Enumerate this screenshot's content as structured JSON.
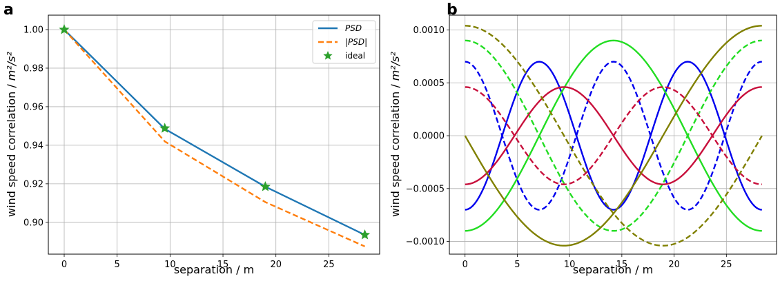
{
  "chart_data": [
    {
      "type": "line",
      "panel_label": "a",
      "xlabel": "separation / m",
      "ylabel_prefix": "wind speed correlation / ",
      "ylabel_unit": "m²/s²",
      "xlim": [
        -1.5,
        29.8
      ],
      "ylim": [
        0.8835,
        1.0075
      ],
      "xticks": [
        0,
        5,
        10,
        15,
        20,
        25
      ],
      "yticks": [
        0.9,
        0.92,
        0.94,
        0.96,
        0.98,
        1.0
      ],
      "ytick_labels": [
        "0.90",
        "0.92",
        "0.94",
        "0.96",
        "0.98",
        "1.00"
      ],
      "grid": true,
      "legend_position": "top-right",
      "series": [
        {
          "name": "PSD",
          "color": "#1f77b4",
          "style": "solid",
          "x": [
            0,
            9.5,
            19.0,
            28.4
          ],
          "y": [
            1.0,
            0.9485,
            0.9185,
            0.8935
          ]
        },
        {
          "name": "|PSD|",
          "color": "#ff7f0e",
          "style": "dashed",
          "x": [
            0,
            9.5,
            19.0,
            28.4
          ],
          "y": [
            1.0,
            0.942,
            0.9105,
            0.8875
          ]
        },
        {
          "name": "ideal",
          "color": "#2ca02c",
          "style": "marker-star",
          "x": [
            0,
            9.5,
            19.0,
            28.4
          ],
          "y": [
            1.0,
            0.9488,
            0.9185,
            0.8935
          ]
        }
      ]
    },
    {
      "type": "line",
      "panel_label": "b",
      "xlabel": "separation / m",
      "ylabel_prefix": "wind speed correlation / ",
      "ylabel_unit": "m²/s²",
      "xlim": [
        -1.5,
        29.8
      ],
      "ylim": [
        -0.00112,
        0.00114
      ],
      "xticks": [
        0,
        5,
        10,
        15,
        20,
        25
      ],
      "yticks": [
        -0.001,
        -0.0005,
        0,
        0.0005,
        0.001
      ],
      "ytick_labels": [
        "−0.0010",
        "−0.0005",
        "0.0000",
        "0.0005",
        "0.0010"
      ],
      "grid": true,
      "x_max": 28.4,
      "series": [
        {
          "color": "#0000ee",
          "style": "solid",
          "kind": "cos",
          "amplitude": -0.0007,
          "period": 14.2
        },
        {
          "color": "#0000ee",
          "style": "dashed",
          "kind": "cos",
          "amplitude": 0.0007,
          "period": 14.2
        },
        {
          "color": "#22dd22",
          "style": "solid",
          "kind": "cos",
          "amplitude": -0.0009,
          "period": 28.4
        },
        {
          "color": "#22dd22",
          "style": "dashed",
          "kind": "cos",
          "amplitude": 0.0009,
          "period": 28.4
        },
        {
          "color": "#c8103c",
          "style": "solid",
          "kind": "cos",
          "amplitude": -0.00046,
          "period": 18.93
        },
        {
          "color": "#c8103c",
          "style": "dashed",
          "kind": "cos",
          "amplitude": 0.00046,
          "period": 18.93
        },
        {
          "color": "#808000",
          "style": "solid",
          "kind": "sin",
          "amplitude": -0.00104,
          "period": 37.87
        },
        {
          "color": "#808000",
          "style": "dashed",
          "kind": "cos",
          "amplitude": 0.00104,
          "period": 37.87
        }
      ]
    }
  ]
}
